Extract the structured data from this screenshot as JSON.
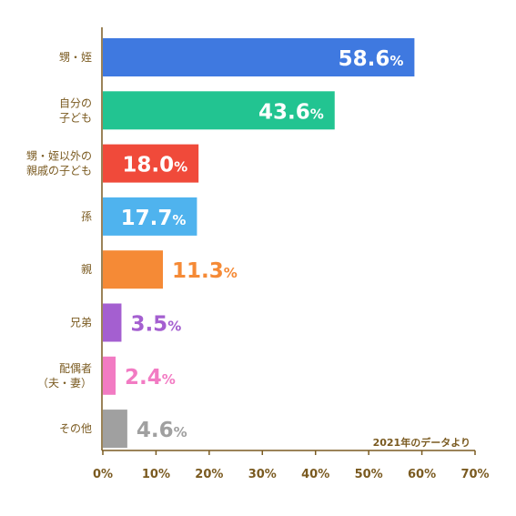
{
  "chart_data": {
    "type": "bar",
    "orientation": "horizontal",
    "categories": [
      [
        "甥・姪"
      ],
      [
        "自分の",
        "子ども"
      ],
      [
        "甥・姪以外の",
        "親戚の子ども"
      ],
      [
        "孫"
      ],
      [
        "親"
      ],
      [
        "兄弟"
      ],
      [
        "配偶者",
        "（夫・妻）"
      ],
      [
        "その他"
      ]
    ],
    "values": [
      58.6,
      43.6,
      18.0,
      17.7,
      11.3,
      3.5,
      2.4,
      4.6
    ],
    "value_labels": [
      "58.6",
      "43.6",
      "18.0",
      "17.7",
      "11.3",
      "3.5",
      "2.4",
      "4.6"
    ],
    "value_unit": "%",
    "label_position": [
      "inside",
      "inside",
      "inside",
      "inside",
      "outside",
      "outside",
      "outside",
      "outside"
    ],
    "colors": [
      "#3f79e0",
      "#22c491",
      "#f04a3a",
      "#4fb3ee",
      "#f58a36",
      "#a45fd0",
      "#f27bc3",
      "#a0a0a0"
    ],
    "xlim": [
      0,
      70
    ],
    "xticks": [
      "0%",
      "10%",
      "20%",
      "30%",
      "40%",
      "50%",
      "60%",
      "70%"
    ],
    "xtick_values": [
      0,
      10,
      20,
      30,
      40,
      50,
      60,
      70
    ],
    "annotation": "2021年のデータより",
    "axis_color": "#7a5a20",
    "grid": false,
    "title": "",
    "xlabel": "",
    "ylabel": ""
  }
}
